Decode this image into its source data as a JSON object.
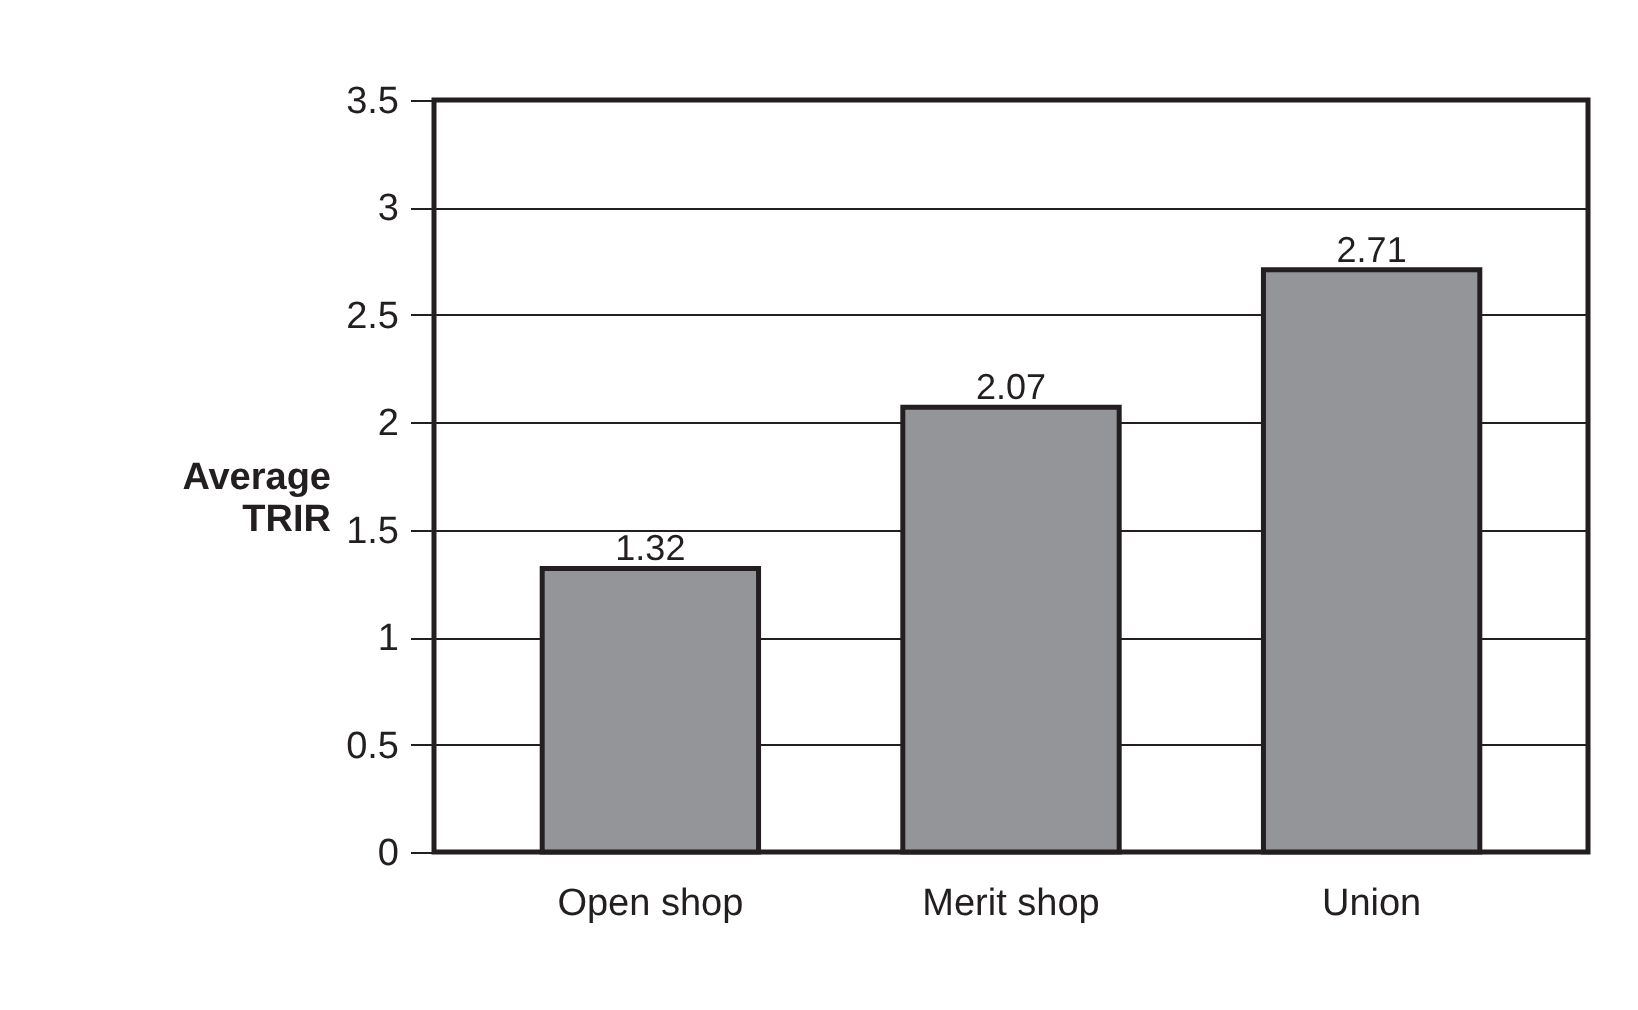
{
  "chart_data": {
    "type": "bar",
    "ylabel": "Average TRIR",
    "categories": [
      "Open shop",
      "Merit shop",
      "Union"
    ],
    "values": [
      1.32,
      2.07,
      2.71
    ],
    "color": "#939598",
    "ylim": [
      0,
      3.5
    ],
    "yticks": [
      0,
      0.5,
      1,
      1.5,
      2,
      2.5,
      3,
      3.5
    ],
    "grid": "y",
    "data_labels": true
  }
}
